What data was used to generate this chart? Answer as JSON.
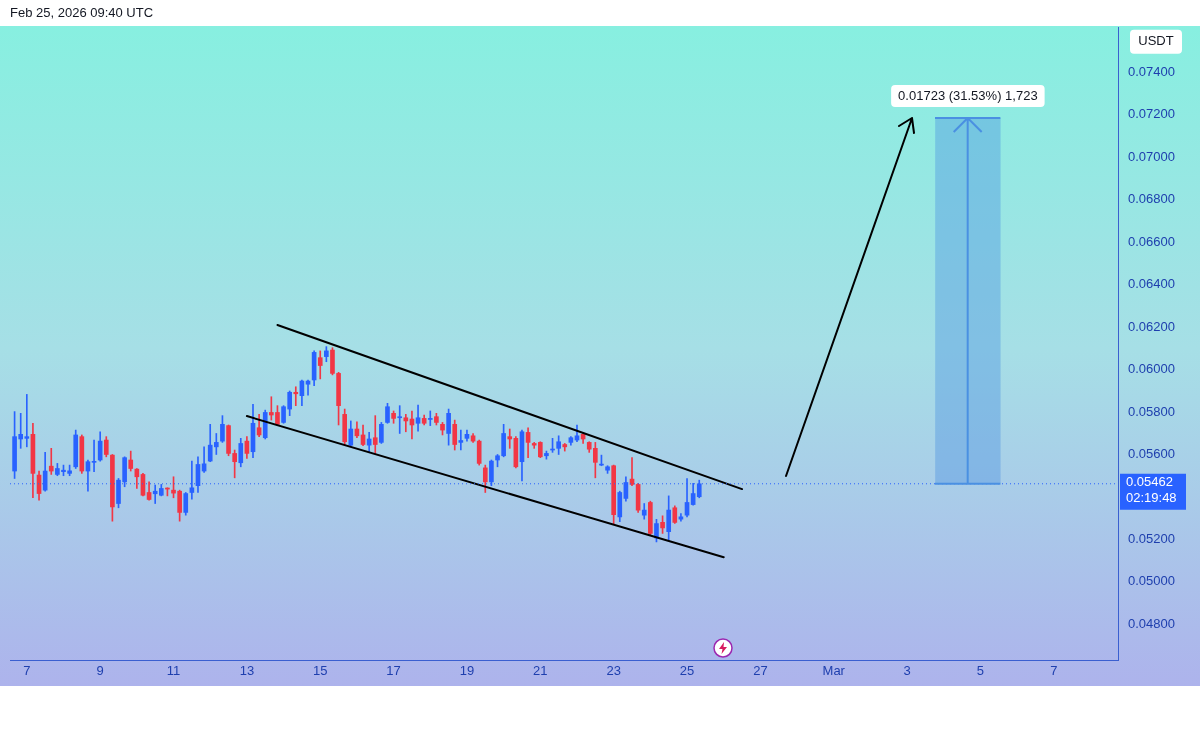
{
  "chart_data": {
    "type": "candlestick",
    "ylabel": "USDT",
    "annotations": [
      "Feb 25, 2026 09:40 UTC"
    ],
    "x": [
      "2026-02-06T16:00",
      "2026-02-06T20:00",
      "2026-02-07T00:00",
      "2026-02-07T04:00",
      "2026-02-07T08:00",
      "2026-02-07T12:00",
      "2026-02-07T16:00",
      "2026-02-07T20:00",
      "2026-02-08T00:00",
      "2026-02-08T04:00",
      "2026-02-08T08:00",
      "2026-02-08T12:00",
      "2026-02-08T16:00",
      "2026-02-08T20:00",
      "2026-02-09T00:00",
      "2026-02-09T04:00",
      "2026-02-09T08:00",
      "2026-02-09T12:00",
      "2026-02-09T16:00",
      "2026-02-09T20:00",
      "2026-02-10T00:00",
      "2026-02-10T04:00",
      "2026-02-10T08:00",
      "2026-02-10T12:00",
      "2026-02-10T16:00",
      "2026-02-10T20:00",
      "2026-02-11T00:00",
      "2026-02-11T04:00",
      "2026-02-11T08:00",
      "2026-02-11T12:00",
      "2026-02-11T16:00",
      "2026-02-11T20:00",
      "2026-02-12T00:00",
      "2026-02-12T04:00",
      "2026-02-12T08:00",
      "2026-02-12T12:00",
      "2026-02-12T16:00",
      "2026-02-12T20:00",
      "2026-02-13T00:00",
      "2026-02-13T04:00",
      "2026-02-13T08:00",
      "2026-02-13T12:00",
      "2026-02-13T16:00",
      "2026-02-13T20:00",
      "2026-02-14T00:00",
      "2026-02-14T04:00",
      "2026-02-14T08:00",
      "2026-02-14T12:00",
      "2026-02-14T16:00",
      "2026-02-14T20:00",
      "2026-02-15T00:00",
      "2026-02-15T04:00",
      "2026-02-15T08:00",
      "2026-02-15T12:00",
      "2026-02-15T16:00",
      "2026-02-15T20:00",
      "2026-02-16T00:00",
      "2026-02-16T04:00",
      "2026-02-16T08:00",
      "2026-02-16T12:00",
      "2026-02-16T16:00",
      "2026-02-16T20:00",
      "2026-02-17T00:00",
      "2026-02-17T04:00",
      "2026-02-17T08:00",
      "2026-02-17T12:00",
      "2026-02-17T16:00",
      "2026-02-17T20:00",
      "2026-02-18T00:00",
      "2026-02-18T04:00",
      "2026-02-18T08:00",
      "2026-02-18T12:00",
      "2026-02-18T16:00",
      "2026-02-18T20:00",
      "2026-02-19T00:00",
      "2026-02-19T04:00",
      "2026-02-19T08:00",
      "2026-02-19T12:00",
      "2026-02-19T16:00",
      "2026-02-19T20:00",
      "2026-02-20T00:00",
      "2026-02-20T04:00",
      "2026-02-20T08:00",
      "2026-02-20T12:00",
      "2026-02-20T16:00",
      "2026-02-20T20:00",
      "2026-02-21T00:00",
      "2026-02-21T04:00",
      "2026-02-21T08:00",
      "2026-02-21T12:00",
      "2026-02-21T16:00",
      "2026-02-21T20:00",
      "2026-02-22T00:00",
      "2026-02-22T04:00",
      "2026-02-22T08:00",
      "2026-02-22T12:00",
      "2026-02-22T16:00",
      "2026-02-22T20:00",
      "2026-02-23T00:00",
      "2026-02-23T04:00",
      "2026-02-23T08:00",
      "2026-02-23T12:00",
      "2026-02-23T16:00",
      "2026-02-23T20:00",
      "2026-02-24T00:00",
      "2026-02-24T04:00",
      "2026-02-24T08:00",
      "2026-02-24T12:00",
      "2026-02-24T16:00",
      "2026-02-24T20:00",
      "2026-02-25T00:00",
      "2026-02-25T04:00",
      "2026-02-25T08:00"
    ],
    "ohlc": [
      [
        0.05522,
        0.05802,
        0.05487,
        0.05684
      ],
      [
        0.05673,
        0.05794,
        0.05629,
        0.05695
      ],
      [
        0.05676,
        0.05883,
        0.05636,
        0.05684
      ],
      [
        0.05695,
        0.05747,
        0.05396,
        0.05511
      ],
      [
        0.05503,
        0.05522,
        0.05385,
        0.05416
      ],
      [
        0.05432,
        0.0561,
        0.05427,
        0.05522
      ],
      [
        0.05545,
        0.05629,
        0.05506,
        0.05522
      ],
      [
        0.05506,
        0.05558,
        0.055,
        0.05534
      ],
      [
        0.05519,
        0.0555,
        0.055,
        0.05526
      ],
      [
        0.05511,
        0.0555,
        0.055,
        0.05523
      ],
      [
        0.05542,
        0.05715,
        0.05534,
        0.05692
      ],
      [
        0.05684,
        0.05692,
        0.05511,
        0.05522
      ],
      [
        0.05522,
        0.05574,
        0.05427,
        0.05566
      ],
      [
        0.05563,
        0.05668,
        0.05519,
        0.05567
      ],
      [
        0.05574,
        0.05707,
        0.05569,
        0.05663
      ],
      [
        0.05668,
        0.05684,
        0.05589,
        0.056
      ],
      [
        0.05597,
        0.056,
        0.05286,
        0.05353
      ],
      [
        0.05369,
        0.05487,
        0.05349,
        0.05479
      ],
      [
        0.05471,
        0.05589,
        0.05448,
        0.05585
      ],
      [
        0.05574,
        0.05616,
        0.05522,
        0.05534
      ],
      [
        0.05531,
        0.05534,
        0.0544,
        0.05495
      ],
      [
        0.05506,
        0.05511,
        0.05405,
        0.05408
      ],
      [
        0.05421,
        0.05471,
        0.05385,
        0.05388
      ],
      [
        0.05415,
        0.05456,
        0.05369,
        0.05427
      ],
      [
        0.05408,
        0.05459,
        0.05405,
        0.0544
      ],
      [
        0.05442,
        0.05443,
        0.05405,
        0.05437
      ],
      [
        0.05432,
        0.05495,
        0.05396,
        0.05418
      ],
      [
        0.05427,
        0.05432,
        0.05286,
        0.05327
      ],
      [
        0.05327,
        0.05421,
        0.05314,
        0.05416
      ],
      [
        0.05421,
        0.05569,
        0.0539,
        0.05443
      ],
      [
        0.05453,
        0.05589,
        0.05421,
        0.05553
      ],
      [
        0.05522,
        0.05636,
        0.05515,
        0.05556
      ],
      [
        0.05569,
        0.05742,
        0.05566,
        0.05644
      ],
      [
        0.05636,
        0.05699,
        0.056,
        0.05657
      ],
      [
        0.05663,
        0.05783,
        0.05657,
        0.05742
      ],
      [
        0.05736,
        0.05739,
        0.05594,
        0.05605
      ],
      [
        0.05605,
        0.05621,
        0.0549,
        0.05566
      ],
      [
        0.05561,
        0.05676,
        0.05542,
        0.05652
      ],
      [
        0.05663,
        0.05684,
        0.05581,
        0.05605
      ],
      [
        0.05613,
        0.05836,
        0.05585,
        0.05747
      ],
      [
        0.05726,
        0.05789,
        0.05684,
        0.05692
      ],
      [
        0.05679,
        0.05809,
        0.05673,
        0.05798
      ],
      [
        0.05798,
        0.05872,
        0.05762,
        0.05786
      ],
      [
        0.05798,
        0.0583,
        0.05736,
        0.05742
      ],
      [
        0.05751,
        0.0583,
        0.05747,
        0.05825
      ],
      [
        0.05814,
        0.05899,
        0.05783,
        0.05893
      ],
      [
        0.05893,
        0.05919,
        0.0583,
        0.05886
      ],
      [
        0.05877,
        0.05951,
        0.0583,
        0.05946
      ],
      [
        0.05931,
        0.05951,
        0.0588,
        0.05946
      ],
      [
        0.05951,
        0.06088,
        0.05924,
        0.06081
      ],
      [
        0.06056,
        0.06088,
        0.05956,
        0.06019
      ],
      [
        0.06061,
        0.06108,
        0.06037,
        0.06088
      ],
      [
        0.06092,
        0.06103,
        0.05975,
        0.05982
      ],
      [
        0.05982,
        0.05987,
        0.05739,
        0.0583
      ],
      [
        0.05789,
        0.05814,
        0.05644,
        0.0566
      ],
      [
        0.05644,
        0.05758,
        0.05641,
        0.0572
      ],
      [
        0.0572,
        0.05754,
        0.05679,
        0.05688
      ],
      [
        0.05692,
        0.05739,
        0.05641,
        0.05647
      ],
      [
        0.05644,
        0.05704,
        0.05613,
        0.05673
      ],
      [
        0.05679,
        0.05783,
        0.05605,
        0.05647
      ],
      [
        0.05657,
        0.05751,
        0.05652,
        0.05742
      ],
      [
        0.05751,
        0.05841,
        0.05747,
        0.05825
      ],
      [
        0.05794,
        0.05805,
        0.05747,
        0.0577
      ],
      [
        0.05773,
        0.0583,
        0.05699,
        0.05778
      ],
      [
        0.05773,
        0.05789,
        0.05707,
        0.05758
      ],
      [
        0.05767,
        0.05805,
        0.05673,
        0.05739
      ],
      [
        0.05747,
        0.05833,
        0.0571,
        0.05773
      ],
      [
        0.0577,
        0.05786,
        0.05739,
        0.05747
      ],
      [
        0.05765,
        0.05805,
        0.05736,
        0.0577
      ],
      [
        0.05778,
        0.05794,
        0.05739,
        0.05751
      ],
      [
        0.05742,
        0.05751,
        0.05692,
        0.05715
      ],
      [
        0.05699,
        0.05814,
        0.05644,
        0.05794
      ],
      [
        0.05742,
        0.05762,
        0.05621,
        0.05647
      ],
      [
        0.05657,
        0.05715,
        0.05621,
        0.05666
      ],
      [
        0.05676,
        0.05715,
        0.05663,
        0.05695
      ],
      [
        0.05688,
        0.05699,
        0.05657,
        0.05663
      ],
      [
        0.05663,
        0.05668,
        0.0555,
        0.05558
      ],
      [
        0.05537,
        0.0555,
        0.05421,
        0.05471
      ],
      [
        0.05471,
        0.05574,
        0.05453,
        0.05569
      ],
      [
        0.05574,
        0.056,
        0.05542,
        0.05594
      ],
      [
        0.05594,
        0.05742,
        0.05589,
        0.05699
      ],
      [
        0.05684,
        0.0572,
        0.05629,
        0.05673
      ],
      [
        0.05676,
        0.05684,
        0.05537,
        0.05542
      ],
      [
        0.05566,
        0.05715,
        0.05475,
        0.05707
      ],
      [
        0.05704,
        0.05726,
        0.05585,
        0.05657
      ],
      [
        0.05652,
        0.05657,
        0.05629,
        0.05644
      ],
      [
        0.05657,
        0.0566,
        0.05585,
        0.05589
      ],
      [
        0.05594,
        0.05616,
        0.05578,
        0.05605
      ],
      [
        0.05621,
        0.05676,
        0.0561,
        0.05625
      ],
      [
        0.05629,
        0.05688,
        0.056,
        0.0566
      ],
      [
        0.05647,
        0.05652,
        0.05616,
        0.05636
      ],
      [
        0.05657,
        0.05684,
        0.05644,
        0.05679
      ],
      [
        0.05668,
        0.05739,
        0.0566,
        0.05688
      ],
      [
        0.05695,
        0.05699,
        0.05652,
        0.05673
      ],
      [
        0.05657,
        0.0566,
        0.0561,
        0.05625
      ],
      [
        0.05629,
        0.05657,
        0.0549,
        0.05563
      ],
      [
        0.0555,
        0.05597,
        0.05547,
        0.05553
      ],
      [
        0.05526,
        0.05547,
        0.05511,
        0.05542
      ],
      [
        0.05547,
        0.0555,
        0.0527,
        0.05317
      ],
      [
        0.05306,
        0.05427,
        0.05283,
        0.05421
      ],
      [
        0.05393,
        0.05495,
        0.0538,
        0.05468
      ],
      [
        0.05484,
        0.05585,
        0.05453,
        0.05459
      ],
      [
        0.05459,
        0.05464,
        0.05327,
        0.05338
      ],
      [
        0.05314,
        0.05369,
        0.05295,
        0.05338
      ],
      [
        0.05374,
        0.0538,
        0.0522,
        0.05228
      ],
      [
        0.05207,
        0.05295,
        0.05188,
        0.05275
      ],
      [
        0.0528,
        0.05311,
        0.05228,
        0.05254
      ],
      [
        0.05236,
        0.05405,
        0.05196,
        0.05338
      ],
      [
        0.05349,
        0.05358,
        0.05275,
        0.0528
      ],
      [
        0.05295,
        0.05322,
        0.05286,
        0.05306
      ],
      [
        0.05314,
        0.05487,
        0.05306,
        0.05374
      ],
      [
        0.05364,
        0.05464,
        0.05361,
        0.05416
      ],
      [
        0.05401,
        0.05479,
        0.05396,
        0.05462
      ]
    ],
    "colors": [
      "#2962ff",
      "#2962ff",
      "#2962ff",
      "#f23645",
      "#f23645",
      "#2962ff",
      "#f23645",
      "#2962ff",
      "#2962ff",
      "#2962ff",
      "#2962ff",
      "#f23645",
      "#2962ff",
      "#2962ff",
      "#2962ff",
      "#f23645",
      "#f23645",
      "#2962ff",
      "#2962ff",
      "#f23645",
      "#f23645",
      "#f23645",
      "#f23645",
      "#2962ff",
      "#2962ff",
      "#f23645",
      "#f23645",
      "#f23645",
      "#2962ff",
      "#2962ff",
      "#2962ff",
      "#2962ff",
      "#2962ff",
      "#2962ff",
      "#2962ff",
      "#f23645",
      "#f23645",
      "#2962ff",
      "#f23645",
      "#2962ff",
      "#f23645",
      "#2962ff",
      "#f23645",
      "#f23645",
      "#2962ff",
      "#2962ff",
      "#f23645",
      "#2962ff",
      "#2962ff",
      "#2962ff",
      "#f23645",
      "#2962ff",
      "#f23645",
      "#f23645",
      "#f23645",
      "#2962ff",
      "#f23645",
      "#f23645",
      "#2962ff",
      "#f23645",
      "#2962ff",
      "#2962ff",
      "#f23645",
      "#2962ff",
      "#f23645",
      "#f23645",
      "#2962ff",
      "#f23645",
      "#2962ff",
      "#f23645",
      "#f23645",
      "#2962ff",
      "#f23645",
      "#2962ff",
      "#2962ff",
      "#f23645",
      "#f23645",
      "#f23645",
      "#2962ff",
      "#2962ff",
      "#2962ff",
      "#f23645",
      "#f23645",
      "#2962ff",
      "#f23645",
      "#f23645",
      "#f23645",
      "#2962ff",
      "#2962ff",
      "#2962ff",
      "#f23645",
      "#2962ff",
      "#2962ff",
      "#f23645",
      "#f23645",
      "#f23645",
      "#2962ff",
      "#2962ff",
      "#f23645",
      "#2962ff",
      "#2962ff",
      "#f23645",
      "#f23645",
      "#2962ff",
      "#f23645",
      "#2962ff",
      "#f23645",
      "#2962ff",
      "#f23645",
      "#2962ff",
      "#2962ff",
      "#2962ff",
      "#2962ff"
    ],
    "series": [
      {
        "type": "line",
        "color": "#000000",
        "x": [
          "2026-02-13T20:00",
          "2026-02-26T12:00"
        ],
        "values": [
          0.0621,
          0.05437
        ]
      },
      {
        "type": "line",
        "color": "#000000",
        "x": [
          "2026-02-13T00:00",
          "2026-02-26T00:00"
        ],
        "values": [
          0.05781,
          0.05116
        ]
      }
    ],
    "ref_lines": [
      {
        "axis": "y",
        "value": 0.05462,
        "label": "0.05462\n02:19:48",
        "color": "#2962ff",
        "line_style": "dotted"
      }
    ],
    "bands": [
      {
        "axis": "y",
        "from": 0.05462,
        "to": 0.07185,
        "label": "0.01723 (31.53%) 1,723",
        "color": "#4a90e2"
      }
    ],
    "xlim": [
      "2026-02-06T13:00",
      "2026-03-08T18:00"
    ],
    "xticks": [
      {
        "value": "2026-02-07",
        "label": "7"
      },
      {
        "value": "2026-02-09",
        "label": "9"
      },
      {
        "value": "2026-02-11",
        "label": "11"
      },
      {
        "value": "2026-02-13",
        "label": "13"
      },
      {
        "value": "2026-02-15",
        "label": "15"
      },
      {
        "value": "2026-02-17",
        "label": "17"
      },
      {
        "value": "2026-02-19",
        "label": "19"
      },
      {
        "value": "2026-02-21",
        "label": "21"
      },
      {
        "value": "2026-02-23",
        "label": "23"
      },
      {
        "value": "2026-02-25",
        "label": "25"
      },
      {
        "value": "2026-02-27",
        "label": "27"
      },
      {
        "value": "2026-03-01",
        "label": "Mar"
      },
      {
        "value": "2026-03-03",
        "label": "3"
      },
      {
        "value": "2026-03-05",
        "label": "5"
      },
      {
        "value": "2026-03-07",
        "label": "7"
      }
    ],
    "ylim": [
      0.0463,
      0.0761
    ],
    "yticks": [
      {
        "value": 0.048,
        "label": "0.04800"
      },
      {
        "value": 0.05,
        "label": "0.05000"
      },
      {
        "value": 0.052,
        "label": "0.05200"
      },
      {
        "value": 0.056,
        "label": "0.05600"
      },
      {
        "value": 0.058,
        "label": "0.05800"
      },
      {
        "value": 0.06,
        "label": "0.06000"
      },
      {
        "value": 0.062,
        "label": "0.06200"
      },
      {
        "value": 0.064,
        "label": "0.06400"
      },
      {
        "value": 0.066,
        "label": "0.06600"
      },
      {
        "value": 0.068,
        "label": "0.06800"
      },
      {
        "value": 0.07,
        "label": "0.07000"
      },
      {
        "value": 0.072,
        "label": "0.07200"
      },
      {
        "value": 0.074,
        "label": "0.07400"
      }
    ]
  }
}
